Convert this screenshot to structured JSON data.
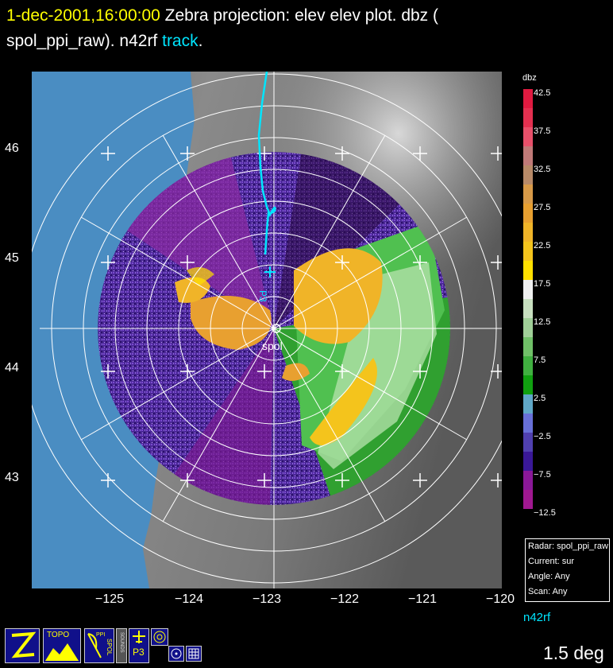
{
  "title": {
    "timestamp": "1-dec-2001,16:00:00",
    "text_main": " Zebra projection: elev elev  plot.  dbz (",
    "text_line2": "spol_ppi_raw).   n42rf ",
    "track_word": "track",
    "end_dot": "."
  },
  "axes": {
    "lat_labels": [
      "46",
      "45",
      "44",
      "43"
    ],
    "lon_labels": [
      "−125",
      "−124",
      "−123",
      "−122",
      "−121",
      "−120"
    ]
  },
  "map": {
    "radar_label": "spol",
    "aircraft_label": "P3",
    "ocean_color": "#4a8dc2",
    "track_color": "#00e5ff"
  },
  "colorbar": {
    "title": "dbz",
    "labels": [
      "42.5",
      "37.5",
      "32.5",
      "27.5",
      "22.5",
      "17.5",
      "12.5",
      "7.5",
      "2.5",
      "−2.5",
      "−7.5",
      "−12.5"
    ],
    "colors": [
      "#e01a40",
      "#e33050",
      "#e8506a",
      "#c07a78",
      "#b88a68",
      "#d89a48",
      "#e8a030",
      "#f0b428",
      "#f4c41c",
      "#ffe000",
      "#f0f0f0",
      "#c8e0c0",
      "#a0d098",
      "#70c068",
      "#40b040",
      "#10a010",
      "#60a8c8",
      "#6870d8",
      "#5040b0",
      "#3a1898",
      "#8a1898",
      "#a01890"
    ]
  },
  "info_box": {
    "radar": "Radar: spol_ppi_raw",
    "current": "Current: sur",
    "angle": "Angle: Any",
    "scan": "Scan: Any"
  },
  "platform_label": "n42rf",
  "elevation_label": "1.5 deg",
  "toolbar": {
    "topo": "TOPO",
    "ppi": "PPI",
    "spol": "SPOL",
    "sounds": "SOUNDS",
    "p3": "P3"
  }
}
